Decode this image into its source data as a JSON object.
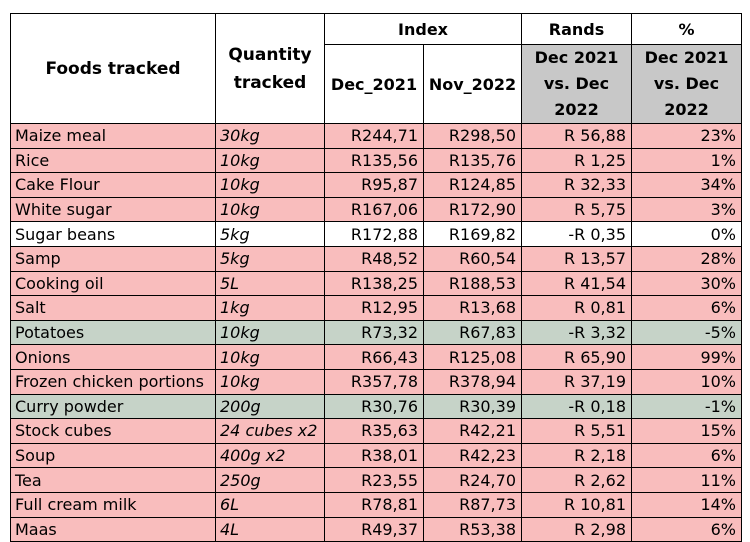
{
  "headers": {
    "foods": "Foods tracked",
    "quantity": "Quantity tracked",
    "index": "Index",
    "rands": "Rands",
    "percent": "%",
    "dec2021": "Dec_2021",
    "nov2022": "Nov_2022",
    "rands_sub": "Dec 2021 vs. Dec 2022",
    "percent_sub": "Dec 2021 vs. Dec 2022"
  },
  "colors": {
    "increase": "#f9bdbd",
    "neutral": "#ffffff",
    "decrease": "#c6d3c8",
    "header_grey": "#c8c8c8"
  },
  "rows": [
    {
      "food": "Maize meal",
      "qty": "30kg",
      "dec": "R244,71",
      "nov": "R298,50",
      "rands": "R 56,88",
      "pct": "23%",
      "status": "pink"
    },
    {
      "food": "Rice",
      "qty": "10kg",
      "dec": "R135,56",
      "nov": "R135,76",
      "rands": "R 1,25",
      "pct": "1%",
      "status": "pink"
    },
    {
      "food": "Cake Flour",
      "qty": "10kg",
      "dec": "R95,87",
      "nov": "R124,85",
      "rands": "R 32,33",
      "pct": "34%",
      "status": "pink"
    },
    {
      "food": "White sugar",
      "qty": "10kg",
      "dec": "R167,06",
      "nov": "R172,90",
      "rands": "R 5,75",
      "pct": "3%",
      "status": "pink"
    },
    {
      "food": "Sugar beans",
      "qty": "5kg",
      "dec": "R172,88",
      "nov": "R169,82",
      "rands": "-R 0,35",
      "pct": "0%",
      "status": "white"
    },
    {
      "food": "Samp",
      "qty": "5kg",
      "dec": "R48,52",
      "nov": "R60,54",
      "rands": "R 13,57",
      "pct": "28%",
      "status": "pink"
    },
    {
      "food": "Cooking oil",
      "qty": "5L",
      "dec": "R138,25",
      "nov": "R188,53",
      "rands": "R 41,54",
      "pct": "30%",
      "status": "pink"
    },
    {
      "food": "Salt",
      "qty": "1kg",
      "dec": "R12,95",
      "nov": "R13,68",
      "rands": "R 0,81",
      "pct": "6%",
      "status": "pink"
    },
    {
      "food": "Potatoes",
      "qty": "10kg",
      "dec": "R73,32",
      "nov": "R67,83",
      "rands": "-R 3,32",
      "pct": "-5%",
      "status": "green"
    },
    {
      "food": "Onions",
      "qty": "10kg",
      "dec": "R66,43",
      "nov": "R125,08",
      "rands": "R 65,90",
      "pct": "99%",
      "status": "pink"
    },
    {
      "food": "Frozen chicken portions",
      "qty": "10kg",
      "dec": "R357,78",
      "nov": "R378,94",
      "rands": "R 37,19",
      "pct": "10%",
      "status": "pink"
    },
    {
      "food": "Curry powder",
      "qty": "200g",
      "dec": "R30,76",
      "nov": "R30,39",
      "rands": "-R 0,18",
      "pct": "-1%",
      "status": "green"
    },
    {
      "food": "Stock cubes",
      "qty": "24 cubes x2",
      "dec": "R35,63",
      "nov": "R42,21",
      "rands": "R 5,51",
      "pct": "15%",
      "status": "pink"
    },
    {
      "food": "Soup",
      "qty": "400g x2",
      "dec": "R38,01",
      "nov": "R42,23",
      "rands": "R 2,18",
      "pct": "6%",
      "status": "pink"
    },
    {
      "food": "Tea",
      "qty": "250g",
      "dec": "R23,55",
      "nov": "R24,70",
      "rands": "R 2,62",
      "pct": "11%",
      "status": "pink"
    },
    {
      "food": "Full cream milk",
      "qty": "6L",
      "dec": "R78,81",
      "nov": "R87,73",
      "rands": "R 10,81",
      "pct": "14%",
      "status": "pink"
    },
    {
      "food": "Maas",
      "qty": "4L",
      "dec": "R49,37",
      "nov": "R53,38",
      "rands": "R 2,98",
      "pct": "6%",
      "status": "pink"
    }
  ]
}
